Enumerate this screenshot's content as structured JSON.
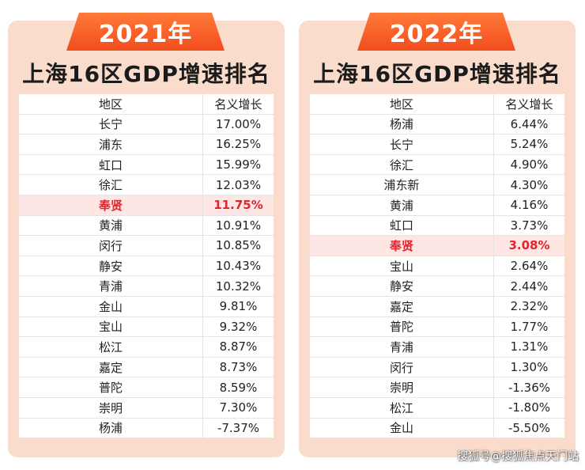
{
  "left": {
    "year": "2021年",
    "title": "上海16区GDP增速排名",
    "headers": [
      "地区",
      "名义增长"
    ],
    "highlight": "奉贤",
    "rows": [
      [
        "长宁",
        "17.00%"
      ],
      [
        "浦东",
        "16.25%"
      ],
      [
        "虹口",
        "15.99%"
      ],
      [
        "徐汇",
        "12.03%"
      ],
      [
        "奉贤",
        "11.75%"
      ],
      [
        "黄浦",
        "10.91%"
      ],
      [
        "闵行",
        "10.85%"
      ],
      [
        "静安",
        "10.43%"
      ],
      [
        "青浦",
        "10.32%"
      ],
      [
        "金山",
        "9.81%"
      ],
      [
        "宝山",
        "9.32%"
      ],
      [
        "松江",
        "8.87%"
      ],
      [
        "嘉定",
        "8.73%"
      ],
      [
        "普陀",
        "8.59%"
      ],
      [
        "崇明",
        "7.30%"
      ],
      [
        "杨浦",
        "-7.37%"
      ]
    ]
  },
  "right": {
    "year": "2022年",
    "title": "上海16区GDP增速排名",
    "headers": [
      "地区",
      "名义增长"
    ],
    "highlight": "奉贤",
    "rows": [
      [
        "杨浦",
        "6.44%"
      ],
      [
        "长宁",
        "5.24%"
      ],
      [
        "徐汇",
        "4.90%"
      ],
      [
        "浦东新",
        "4.30%"
      ],
      [
        "黄浦",
        "4.16%"
      ],
      [
        "虹口",
        "3.73%"
      ],
      [
        "奉贤",
        "3.08%"
      ],
      [
        "宝山",
        "2.64%"
      ],
      [
        "静安",
        "2.44%"
      ],
      [
        "嘉定",
        "2.32%"
      ],
      [
        "普陀",
        "1.77%"
      ],
      [
        "青浦",
        "1.31%"
      ],
      [
        "闵行",
        "1.30%"
      ],
      [
        "崇明",
        "-1.36%"
      ],
      [
        "松江",
        "-1.80%"
      ],
      [
        "金山",
        "-5.50%"
      ]
    ]
  },
  "watermark": "搜狐号@搜狐焦点天门站",
  "colors": {
    "panel_bg": "#f9dccb",
    "tab_orange": "#f24d1d",
    "highlight_text": "#e3232d",
    "highlight_row": "#fde6e3"
  }
}
